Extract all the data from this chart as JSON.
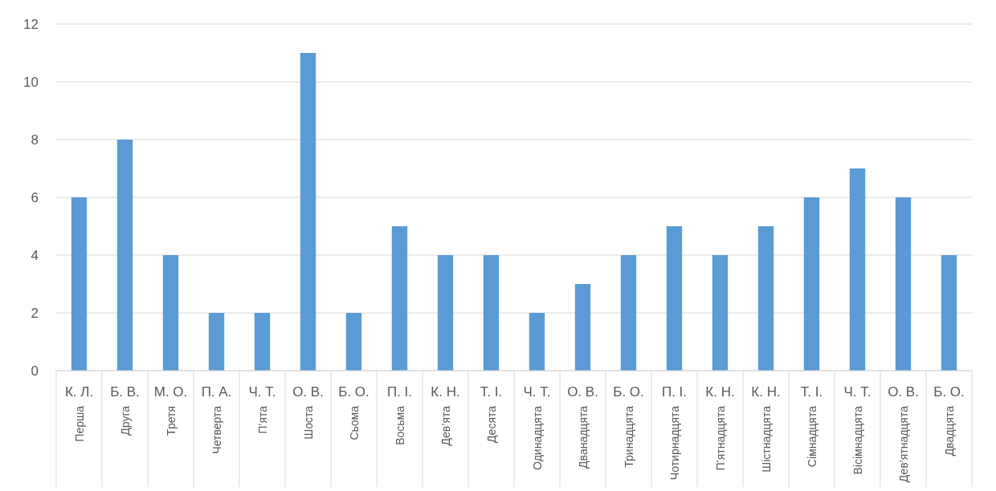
{
  "chart_data": {
    "type": "bar",
    "categories": [
      "К. Л.\nПерша",
      "Б. В.\nДруга",
      "М. О.\nТретя",
      "П. А.\nЧетверта",
      "Ч. Т.\nП’ята",
      "О. В.\nШоста",
      "Б. О.\nСьома",
      "П. І.\nВосьма",
      "К. Н.\nДев’ята",
      "Т. І.\nДесята",
      "Ч. Т.\nОдинадцята",
      "О. В.\nДванадцята",
      "Б. О.\nТринадцята",
      "П. І.\nЧотирнадцята",
      "К. Н.\nП’ятнадцята",
      "К. Н.\nШістнадцята",
      "Т. І.\nСімнадцята",
      "Ч. Т.\nВісімнадцята",
      "О. В.\nДев’ятнадцята",
      "Б. О.\nДвадцята"
    ],
    "values": [
      6,
      8,
      4,
      2,
      2,
      11,
      2,
      5,
      4,
      4,
      2,
      3,
      4,
      5,
      4,
      5,
      6,
      7,
      6,
      4
    ],
    "color": "#5b9bd5",
    "ylim": [
      0,
      12
    ],
    "yticks": [
      0,
      2,
      4,
      6,
      8,
      10,
      12
    ],
    "grid": "y"
  }
}
